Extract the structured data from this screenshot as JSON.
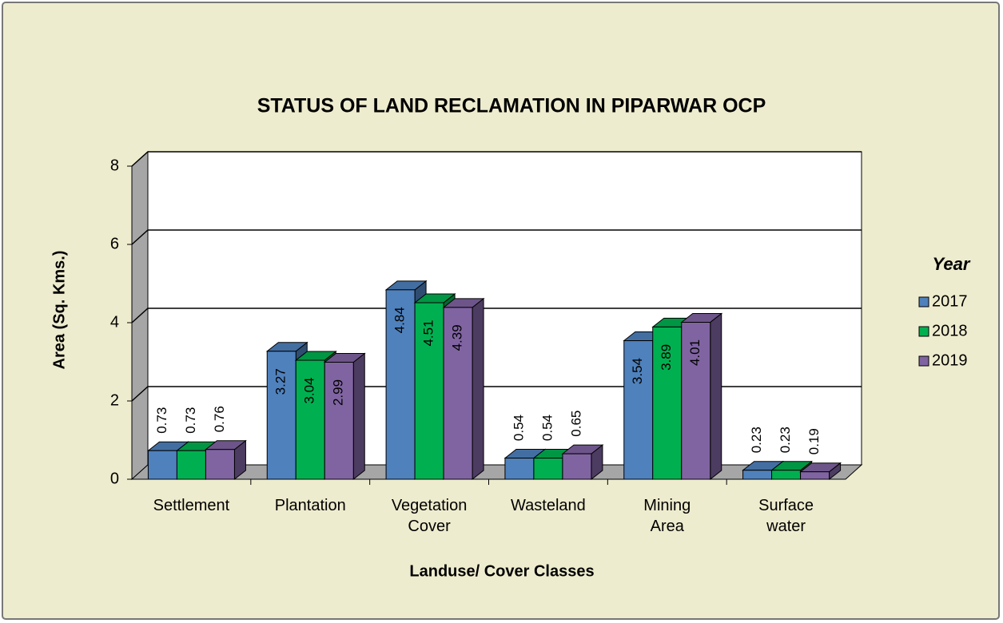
{
  "chart_data": {
    "type": "bar3d",
    "title": "STATUS OF LAND RECLAMATION  IN PIPARWAR OCP",
    "x_label": "Landuse/ Cover Classes",
    "y_label": "Area (Sq. Kms.)",
    "legend_title": "Year",
    "categories": [
      "Settlement",
      "Plantation",
      "Vegetation Cover",
      "Wasteland",
      "Mining Area",
      "Surface water"
    ],
    "series": [
      {
        "name": "2017",
        "color": "#4f81bd",
        "values": [
          0.73,
          3.27,
          4.84,
          0.54,
          3.54,
          0.23
        ]
      },
      {
        "name": "2018",
        "color": "#00b050",
        "values": [
          0.73,
          3.04,
          4.51,
          0.54,
          3.89,
          0.23
        ]
      },
      {
        "name": "2019",
        "color": "#8064a2",
        "values": [
          0.76,
          2.99,
          4.39,
          0.65,
          4.01,
          0.19
        ]
      }
    ],
    "ylim": [
      0,
      8
    ],
    "yticks": [
      0,
      2,
      4,
      6,
      8
    ],
    "grid": true,
    "legend": "right"
  }
}
